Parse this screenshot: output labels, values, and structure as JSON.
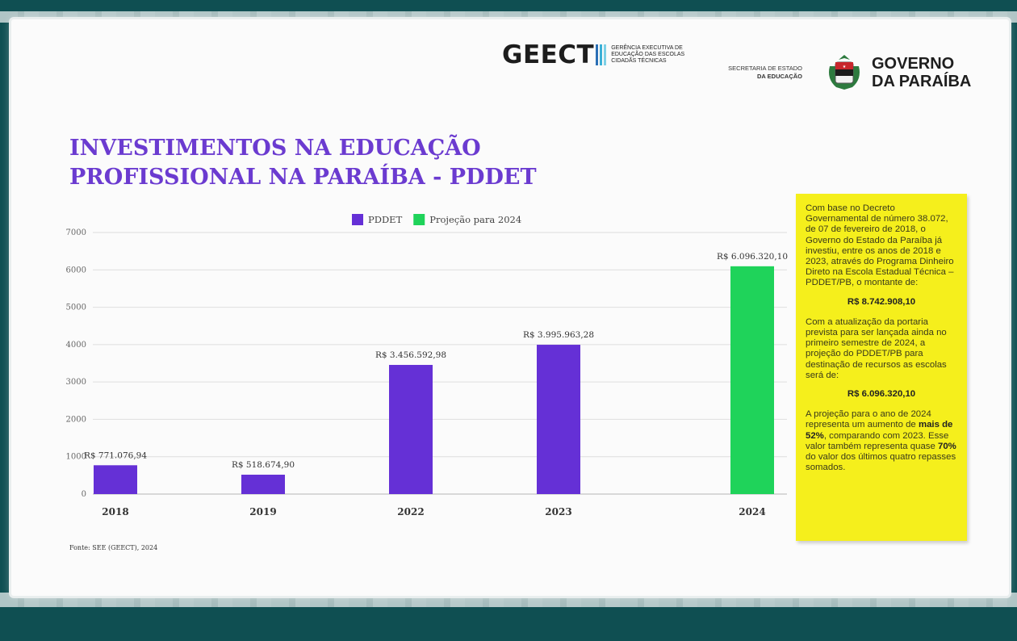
{
  "header": {
    "geect": {
      "word": "GEECT",
      "subtitle": "GERÊNCIA EXECUTIVA DE EDUCAÇÃO DAS ESCOLAS CIDADÃS TÉCNICAS",
      "bar_colors": [
        "#2a6fb5",
        "#3ab0d6",
        "#7ed0e6"
      ]
    },
    "secretaria": {
      "line1": "SECRETARIA DE ESTADO",
      "line2": "DA EDUCAÇÃO"
    },
    "governo": {
      "line1": "GOVERNO",
      "line2": "DA PARAÍBA"
    }
  },
  "title": {
    "line1": "INVESTIMENTOS NA EDUCAÇÃO",
    "line2": "PROFISSIONAL NA PARAÍBA - PDDET"
  },
  "source": "Fonte: SEE (GEECT), 2024",
  "colors": {
    "pddet": "#6530d6",
    "projecao": "#1fd35a",
    "title": "#6b3bd0",
    "info_bg": "#f5ef1c",
    "frame": "#0f4f52"
  },
  "chart_data": {
    "type": "bar",
    "categories": [
      "2018",
      "2019",
      "2022",
      "2023",
      "2024"
    ],
    "series": [
      {
        "name": "PDDET",
        "values": [
          771.07694,
          518.6749,
          3456.59298,
          3995.96328,
          null
        ]
      },
      {
        "name": "Projeção para 2024",
        "values": [
          null,
          null,
          null,
          null,
          6096.3201
        ]
      }
    ],
    "data_labels": [
      "R$ 771.076,94",
      "R$ 518.674,90",
      "R$ 3.456.592,98",
      "R$ 3.995.963,28",
      "R$ 6.096.320,10"
    ],
    "y_ticks": [
      "0",
      "1000",
      "2000",
      "3000",
      "4000",
      "5000",
      "6000",
      "7000"
    ],
    "ylim": [
      0,
      7000
    ],
    "grid": true,
    "legend_position": "top",
    "title": "",
    "xlabel": "",
    "ylabel": ""
  },
  "info_box": {
    "p1": "Com base no Decreto Governamental de número 38.072, de 07 de fevereiro de 2018, o Governo do Estado da Paraíba já investiu, entre os anos de 2018 e 2023, através do Programa Dinheiro Direto na Escola Estadual Técnica – PDDET/PB, o montante de:",
    "amount1": "R$ 8.742.908,10",
    "p2": "Com a atualização da portaria prevista para ser lançada ainda no primeiro semestre de 2024, a projeção do PDDET/PB para destinação de recursos as escolas será de:",
    "amount2": "R$ 6.096.320,10",
    "p3_a": "A projeção para o ano de 2024 representa um aumento de ",
    "p3_b": "mais de 52%",
    "p3_c": ", comparando com 2023. Esse valor também representa quase ",
    "p3_d": "70%",
    "p3_e": " do valor dos últimos quatro repasses somados."
  }
}
